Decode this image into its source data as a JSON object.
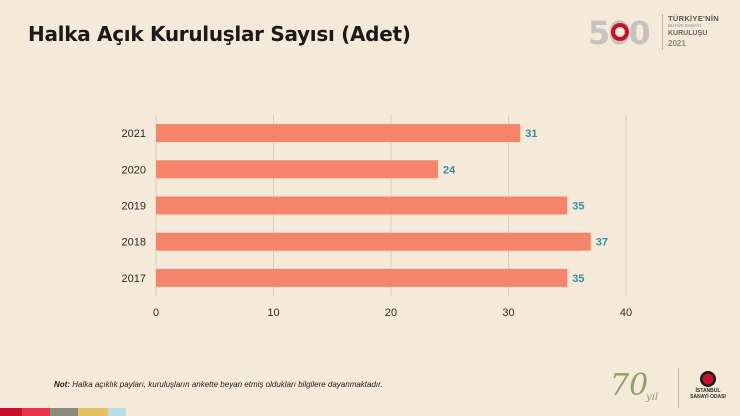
{
  "title": "Halka Açık Kuruluşlar Sayısı (Adet)",
  "header_logo": {
    "number": "500",
    "line1": "TÜRKİYE'NİN",
    "line2": "BÜYÜK SANAYİ",
    "line3": "KURULUŞU",
    "line4": "2021"
  },
  "chart_data": {
    "type": "bar",
    "orientation": "horizontal",
    "categories": [
      "2021",
      "2020",
      "2019",
      "2018",
      "2017"
    ],
    "values": [
      31,
      24,
      35,
      37,
      35
    ],
    "xlim": [
      0,
      40
    ],
    "xticks": [
      "0",
      "10",
      "20",
      "30",
      "40"
    ],
    "grid": true,
    "bar_color": "#f4846a",
    "label_color": "#3a8ea3"
  },
  "note": {
    "label": "Not:",
    "text": " Halka açıklık payları, kuruluşların ankette beyan etmiş oldukları bilgilere dayanmaktadır."
  },
  "footer_logo": {
    "seventy": "70",
    "yil": "yıl",
    "org_line1": "İSTANBUL",
    "org_line2": "SANAYİ ODASI"
  },
  "strip_colors": [
    "#c8102e",
    "#e8344c",
    "#8c8c7e",
    "#e3c266",
    "#b9dde4"
  ]
}
